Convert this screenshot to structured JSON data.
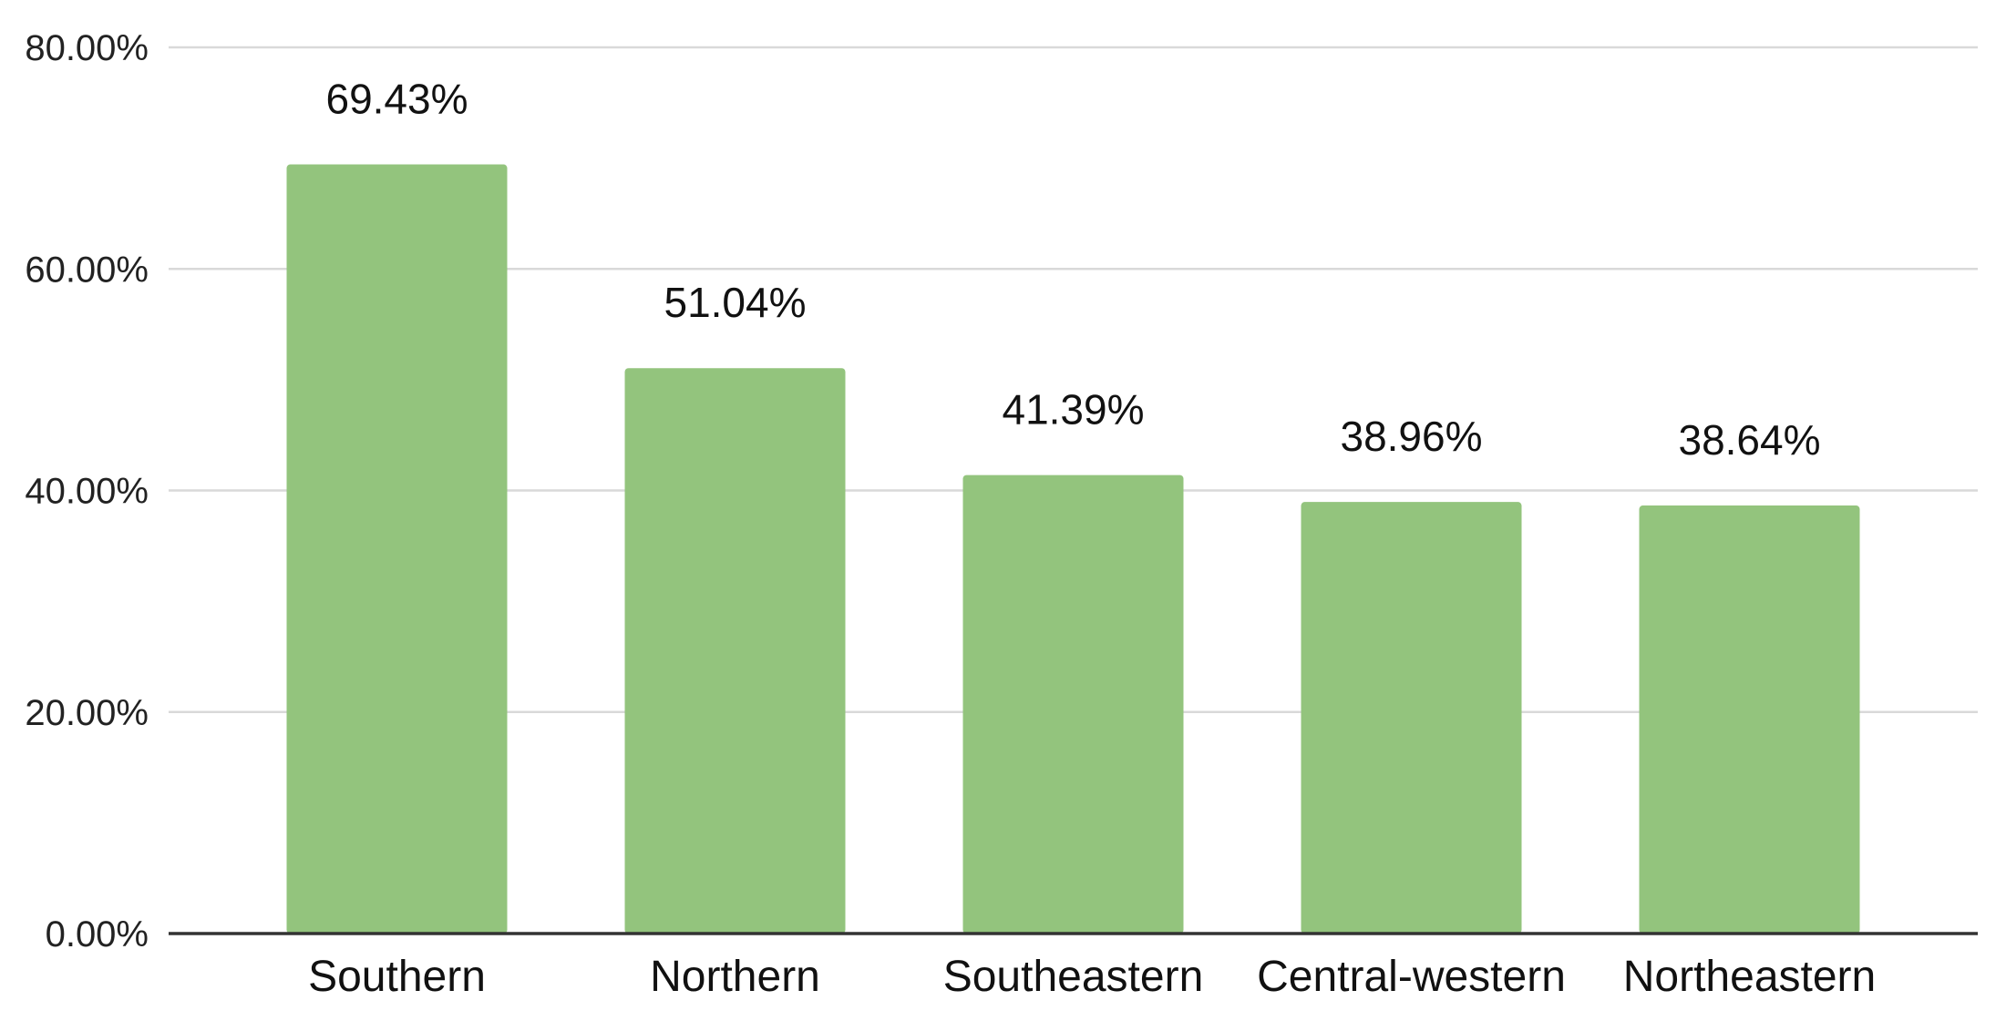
{
  "chart_data": {
    "type": "bar",
    "title": "",
    "xlabel": "",
    "ylabel": "",
    "categories": [
      "Southern",
      "Northern",
      "Southeastern",
      "Central-western",
      "Northeastern"
    ],
    "values": [
      69.43,
      51.04,
      41.39,
      38.96,
      38.64
    ],
    "data_labels": [
      "69.43%",
      "51.04%",
      "41.39%",
      "38.96%",
      "38.64%"
    ],
    "y_ticks": [
      0,
      20,
      40,
      60,
      80
    ],
    "y_tick_labels": [
      "0.00%",
      "20.00%",
      "40.00%",
      "60.00%",
      "80.00%"
    ],
    "ylim": [
      0,
      80
    ],
    "grid": true,
    "legend": "none",
    "bar_color": "#93c47d"
  }
}
